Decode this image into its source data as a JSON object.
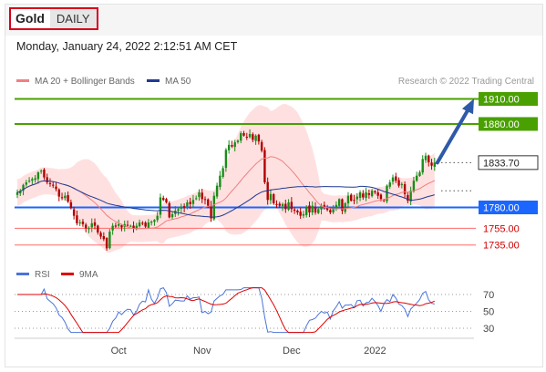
{
  "header": {
    "symbol": "Gold",
    "timeframe": "DAILY",
    "timestamp": "Monday, January 24, 2022 2:12:51 AM CET"
  },
  "legend": {
    "ma20": "MA 20 + Bollinger Bands",
    "ma50": "MA 50",
    "copyright": "Research © 2022 Trading Central",
    "rsi": "RSI",
    "rsi_ma": "9MA"
  },
  "colors": {
    "up": "#1a8c1a",
    "down": "#b00000",
    "bollinger_fill": "#ffe0e0",
    "ma20": "#f08080",
    "ma50": "#1f3a93",
    "resistance": "#4aa000",
    "support_blue": "#1a66ff",
    "support_red": "#d00000",
    "arrow": "#2e5aa8",
    "current": "#222222"
  },
  "chart_data": [
    {
      "type": "candlestick",
      "title": "Gold",
      "xlabel": "",
      "ylabel": "",
      "ylim": [
        1710,
        1925
      ],
      "x_ticks": [
        "Oct",
        "Nov",
        "Dec",
        "2022"
      ],
      "current_price": 1833.7,
      "levels": [
        {
          "value": 1910.0,
          "label": "1910.00",
          "kind": "resistance"
        },
        {
          "value": 1880.0,
          "label": "1880.00",
          "kind": "resistance"
        },
        {
          "value": 1833.7,
          "label": "1833.70",
          "kind": "current"
        },
        {
          "value": 1780.0,
          "label": "1780.00",
          "kind": "pivot"
        },
        {
          "value": 1755.0,
          "label": "1755.00",
          "kind": "support"
        },
        {
          "value": 1735.0,
          "label": "1735.00",
          "kind": "support"
        }
      ],
      "series": [
        {
          "name": "MA 20 + Bollinger Bands"
        },
        {
          "name": "MA 50"
        }
      ],
      "close": [
        1798,
        1800,
        1807,
        1810,
        1812,
        1814,
        1815,
        1822,
        1824,
        1816,
        1810,
        1808,
        1806,
        1802,
        1793,
        1792,
        1794,
        1787,
        1779,
        1770,
        1761,
        1762,
        1760,
        1755,
        1755,
        1761,
        1758,
        1750,
        1745,
        1742,
        1731,
        1751,
        1758,
        1757,
        1760,
        1756,
        1760,
        1759,
        1758,
        1755,
        1758,
        1762,
        1761,
        1757,
        1762,
        1763,
        1765,
        1770,
        1792,
        1789,
        1786,
        1768,
        1772,
        1776,
        1778,
        1781,
        1780,
        1786,
        1784,
        1789,
        1791,
        1798,
        1790,
        1789,
        1782,
        1767,
        1794,
        1806,
        1818,
        1827,
        1849,
        1855,
        1853,
        1858,
        1860,
        1869,
        1866,
        1864,
        1868,
        1861,
        1866,
        1859,
        1848,
        1810,
        1789,
        1796,
        1785,
        1783,
        1782,
        1784,
        1778,
        1786,
        1778,
        1776,
        1774,
        1770,
        1772,
        1781,
        1774,
        1782,
        1774,
        1778,
        1782,
        1781,
        1777,
        1774,
        1779,
        1783,
        1790,
        1776,
        1785,
        1794,
        1788,
        1789,
        1793,
        1798,
        1792,
        1798,
        1795,
        1800,
        1798,
        1794,
        1790,
        1788,
        1806,
        1810,
        1816,
        1812,
        1806,
        1808,
        1796,
        1788,
        1800,
        1812,
        1818,
        1822,
        1838,
        1842,
        1834,
        1830,
        1833.7
      ]
    },
    {
      "type": "line",
      "title": "RSI",
      "xlabel": "",
      "ylabel": "",
      "ylim": [
        25,
        80
      ],
      "y_ticks": [
        70,
        50,
        30
      ],
      "series": [
        {
          "name": "RSI"
        },
        {
          "name": "9MA"
        }
      ]
    }
  ]
}
